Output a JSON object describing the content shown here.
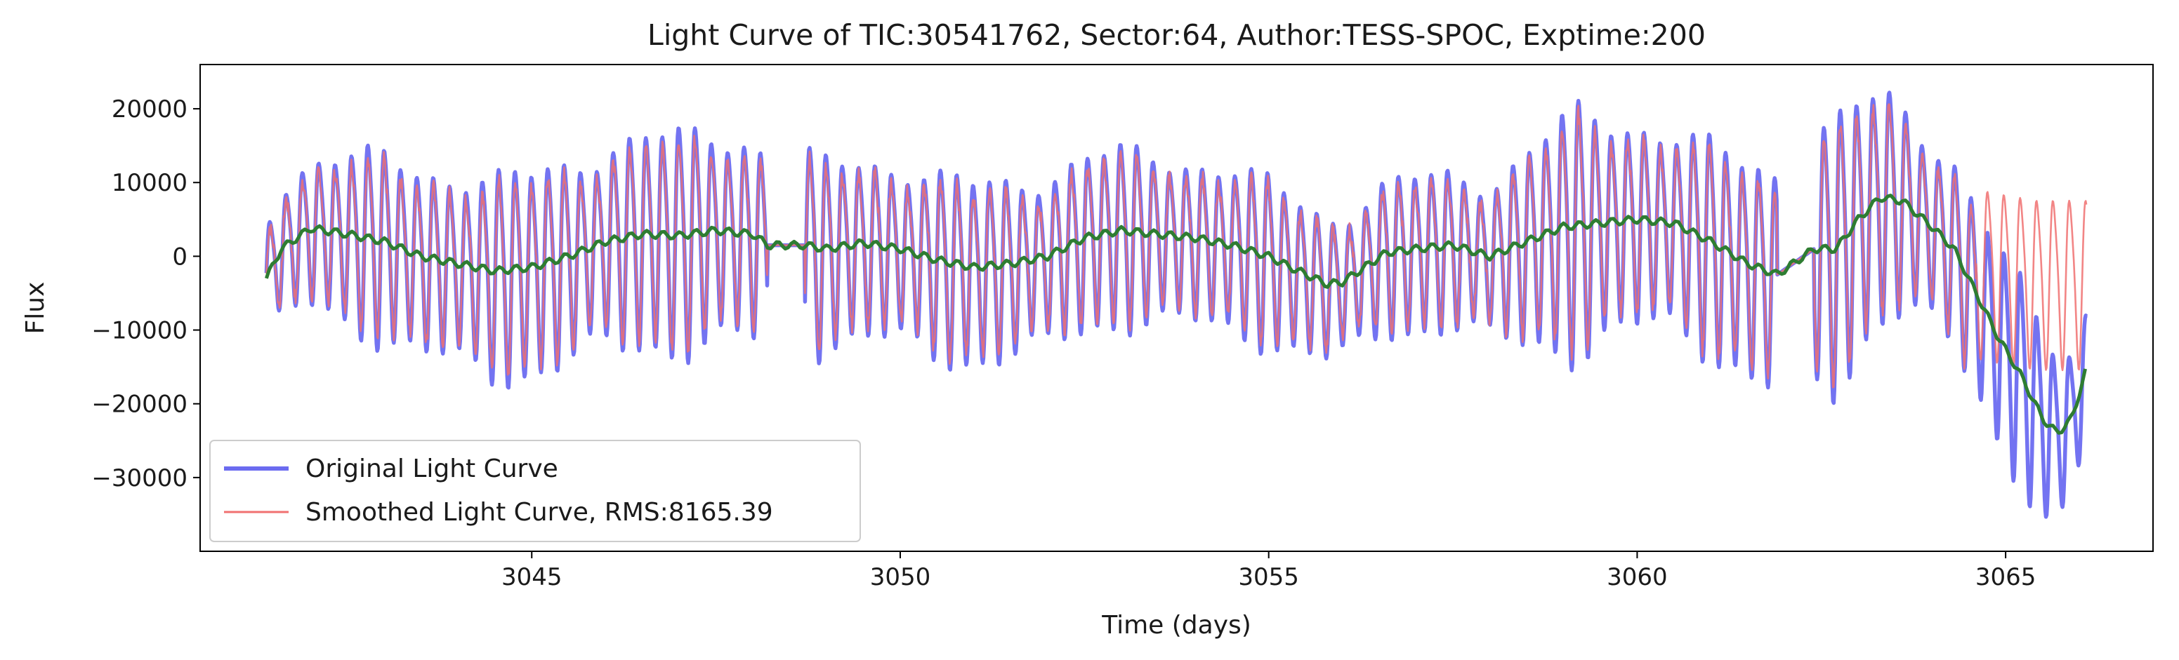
{
  "chart_data": {
    "type": "line",
    "title": "Light Curve of TIC:30541762, Sector:64, Author:TESS-SPOC, Exptime:200",
    "xlabel": "Time (days)",
    "ylabel": "Flux",
    "xlim": [
      3040.5,
      3067.0
    ],
    "ylim": [
      -40000,
      26000
    ],
    "xticks": [
      3045,
      3050,
      3055,
      3060,
      3065
    ],
    "yticks": [
      20000,
      10000,
      0,
      -10000,
      -20000,
      -30000
    ],
    "xtick_labels": [
      "3045",
      "3050",
      "3055",
      "3060",
      "3065"
    ],
    "ytick_labels": [
      "20000",
      "10000",
      "0",
      "−10000",
      "−20000",
      "−30000"
    ],
    "grid": false,
    "legend_position": "lower-left",
    "colors": {
      "original": "#6b6bf0",
      "smoothed": "#f07070",
      "trend": "#2e7d32"
    },
    "series": [
      {
        "name": "Original Light Curve",
        "style": "thick line",
        "data_range": [
          3041.4,
          3066.1
        ],
        "gaps": [
          [
            3048.2,
            3048.7
          ],
          [
            3061.9,
            3062.4
          ]
        ],
        "period_days": 0.222,
        "amplitude": [
          [
            3041.4,
            8000
          ],
          [
            3043.0,
            11500
          ],
          [
            3045.0,
            12500
          ],
          [
            3047.5,
            13500
          ],
          [
            3049.0,
            11500
          ],
          [
            3052.0,
            11000
          ],
          [
            3055.0,
            10000
          ],
          [
            3056.0,
            9000
          ],
          [
            3058.0,
            10000
          ],
          [
            3059.2,
            15000
          ],
          [
            3060.5,
            12000
          ],
          [
            3061.8,
            14000
          ],
          [
            3062.8,
            17000
          ],
          [
            3063.2,
            14000
          ],
          [
            3064.0,
            12000
          ],
          [
            3065.0,
            12000
          ],
          [
            3065.6,
            12000
          ],
          [
            3066.1,
            8000
          ]
        ]
      },
      {
        "name": "Smoothed Light Curve, RMS:8165.39",
        "style": "thin line",
        "data_range": [
          3041.4,
          3066.1
        ],
        "period_days": 0.222,
        "amplitude_ratio_to_original": 0.9,
        "tail_after_3064.6": "oscillation around the original baseline (~0 to -3000) instead of following the dip"
      },
      {
        "name": "",
        "style": "smooth trend line",
        "x": [
          3041.4,
          3041.6,
          3042.0,
          3042.5,
          3043.0,
          3043.5,
          3044.0,
          3044.5,
          3045.0,
          3045.5,
          3046.0,
          3046.5,
          3047.0,
          3047.5,
          3048.0,
          3048.2,
          3048.7,
          3049.0,
          3049.5,
          3050.0,
          3050.5,
          3051.0,
          3051.5,
          3052.0,
          3052.5,
          3053.0,
          3053.5,
          3054.0,
          3054.5,
          3055.0,
          3055.3,
          3055.8,
          3056.0,
          3056.3,
          3056.6,
          3057.0,
          3057.5,
          3058.0,
          3058.5,
          3059.0,
          3059.5,
          3060.0,
          3060.5,
          3061.0,
          3061.5,
          3061.9,
          3062.4,
          3062.7,
          3063.0,
          3063.3,
          3063.6,
          3064.0,
          3064.3,
          3064.6,
          3064.9,
          3065.2,
          3065.5,
          3065.7,
          3065.9,
          3066.1
        ],
        "y": [
          -3000,
          1000,
          3800,
          3000,
          2000,
          0,
          -1000,
          -2000,
          -1500,
          0,
          2000,
          3000,
          2800,
          3500,
          3000,
          1500,
          1500,
          1000,
          1800,
          1000,
          -500,
          -1500,
          -1000,
          0,
          2500,
          3500,
          3000,
          2500,
          1500,
          0,
          -1500,
          -3800,
          -3500,
          -1500,
          500,
          1000,
          1500,
          0,
          2000,
          4000,
          4500,
          5000,
          4500,
          2000,
          -1000,
          -2500,
          1000,
          1000,
          5000,
          8000,
          7500,
          4000,
          1000,
          -5000,
          -11000,
          -16000,
          -22000,
          -24000,
          -22000,
          -15000
        ]
      }
    ]
  }
}
